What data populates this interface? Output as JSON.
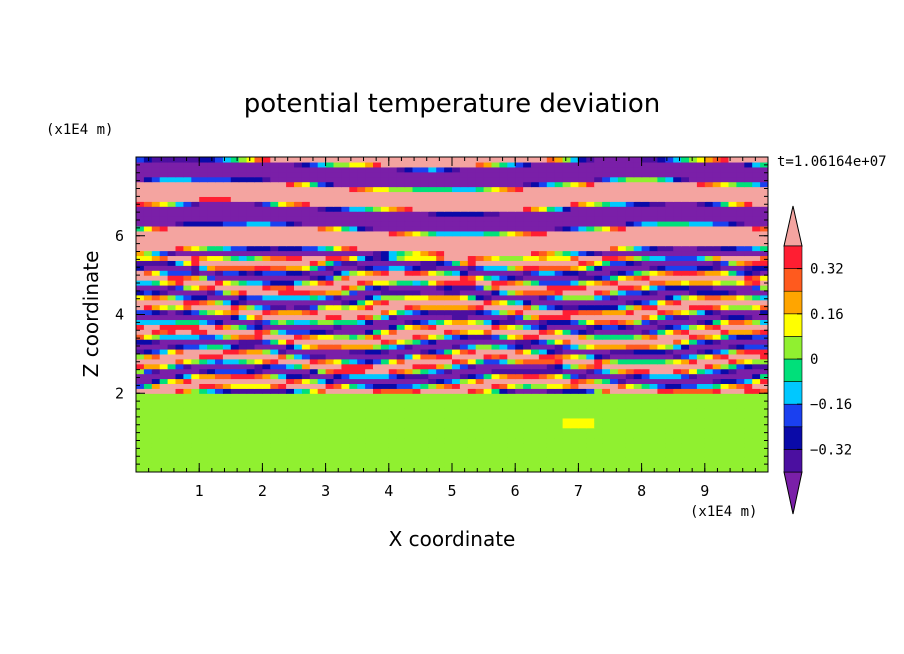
{
  "chart_data": {
    "type": "heatmap",
    "title": "potential temperature deviation",
    "xlabel": "X coordinate",
    "ylabel": "Z coordinate",
    "x_unit": "(x1E4 m)",
    "y_unit": "(x1E4 m)",
    "time_label": "t=1.06164e+07",
    "xlim": [
      0,
      10
    ],
    "ylim": [
      0,
      8
    ],
    "x_ticks": [
      1,
      2,
      3,
      4,
      5,
      6,
      7,
      8,
      9
    ],
    "y_ticks": [
      2,
      4,
      6
    ],
    "colorbar": {
      "levels": [
        -0.48,
        -0.4,
        -0.32,
        -0.24,
        -0.16,
        -0.08,
        0,
        0.08,
        0.16,
        0.24,
        0.32,
        0.4,
        0.48
      ],
      "tick_labels": [
        "0.32",
        "0.16",
        "0",
        "−0.16",
        "−0.32"
      ],
      "tick_values": [
        0.32,
        0.16,
        0,
        -0.16,
        -0.32
      ],
      "colors": [
        "#7a1fa8",
        "#4b0fa0",
        "#0a0aa8",
        "#1a40f0",
        "#00c8ff",
        "#00e07a",
        "#90f030",
        "#ffff00",
        "#ffa500",
        "#ff5a1e",
        "#ff1e32",
        "#f4a4a0"
      ]
    },
    "regions": [
      {
        "z_range": [
          0,
          2.0
        ],
        "pattern": "mostly near-zero values (green) with patches of 0 to 0.08 (yellow-green)"
      },
      {
        "z_range": [
          2.0,
          5.5
        ],
        "pattern": "turbulent layered mixture of all levels"
      },
      {
        "z_range": [
          5.5,
          8.0
        ],
        "pattern": "alternating bands of strongly positive (pink) and strongly negative (purple)"
      }
    ]
  }
}
